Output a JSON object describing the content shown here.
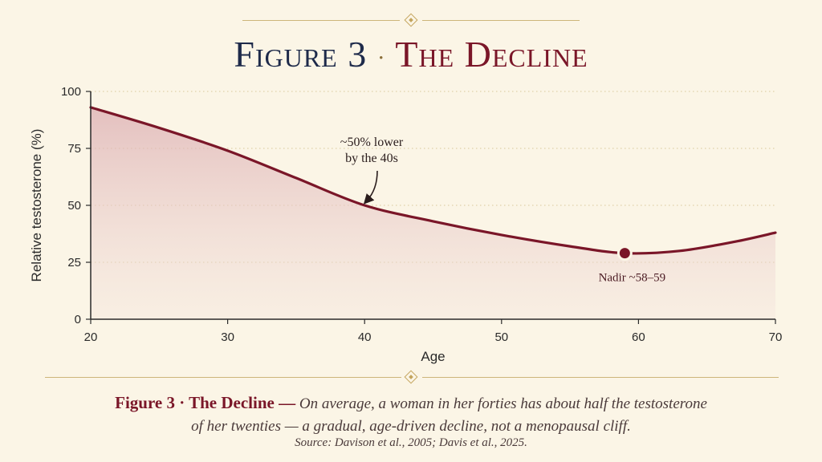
{
  "header": {
    "figure_number": "Figure 3",
    "separator": "·",
    "figure_name": "The Decline"
  },
  "colors": {
    "background": "#fbf5e6",
    "line": "#7a1628",
    "fill": "#e9c9cb",
    "gold": "#c4a45c",
    "title_navy": "#1e2a4a"
  },
  "chart_data": {
    "type": "area",
    "x": [
      20,
      25,
      30,
      35,
      40,
      45,
      50,
      55,
      59,
      63,
      67,
      70
    ],
    "values": [
      93,
      84,
      74,
      62,
      50,
      43,
      37,
      32,
      29,
      30,
      34,
      38
    ],
    "xlabel": "Age",
    "ylabel": "Relative testosterone (%)",
    "xlim": [
      20,
      70
    ],
    "ylim": [
      0,
      100
    ],
    "xticks": [
      20,
      30,
      40,
      50,
      60,
      70
    ],
    "yticks": [
      0,
      25,
      50,
      75,
      100
    ],
    "grid": "horizontal dotted",
    "annotations": [
      {
        "text_lines": [
          "~50% lower",
          "by the 40s"
        ],
        "x": 40,
        "y": 50
      },
      {
        "text": "Nadir ~58–59",
        "x": 59,
        "y": 29
      }
    ]
  },
  "caption": {
    "label": "Figure 3 · The Decline —",
    "text_line1": "On average, a woman in her forties has about half the testosterone",
    "text_line2": "of her twenties — a gradual, age-driven decline, not a menopausal cliff."
  },
  "source": "Source: Davison et al., 2005; Davis et al., 2025."
}
